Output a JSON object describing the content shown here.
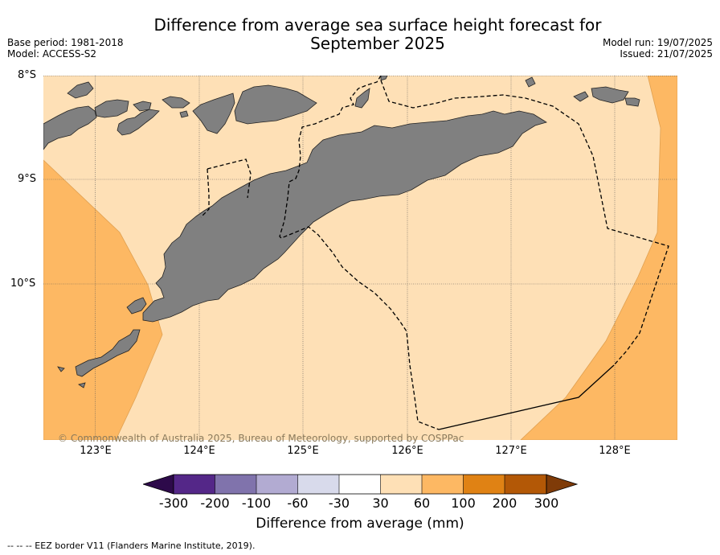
{
  "title_line1": "Difference from average sea surface height forecast for",
  "title_line2": "September 2025",
  "base_period": "Base period: 1981-2018",
  "model": "Model: ACCESS-S2",
  "model_run": "Model run: 19/07/2025",
  "issued": "Issued: 21/07/2025",
  "lat_labels": [
    "8°S",
    "9°S",
    "10°S"
  ],
  "lon_labels": [
    "123°E",
    "124°E",
    "125°E",
    "126°E",
    "127°E",
    "128°E"
  ],
  "copyright": "© Commonwealth of Australia 2025, Bureau of Meteorology, supported by COSPPac",
  "colorbar": {
    "title": "Difference from average (mm)",
    "ticks": [
      "-300",
      "-200",
      "-100",
      "-60",
      "-30",
      "30",
      "60",
      "100",
      "200",
      "300"
    ],
    "colors": {
      "below_min": "#2d0a4a",
      "c1": "#542788",
      "c2": "#8073ac",
      "c3": "#b2abd2",
      "c4": "#d8daeb",
      "c5": "#ffffff",
      "c6": "#fee0b6",
      "c7": "#fdb863",
      "c8": "#e08214",
      "c9": "#b35806",
      "above_max": "#7f3b08"
    }
  },
  "footer": "--  --  -- EEZ border V11 (Flanders Marine Institute, 2019).",
  "land_color": "#808080",
  "icons": {
    "eez_border": "dashed-line"
  }
}
